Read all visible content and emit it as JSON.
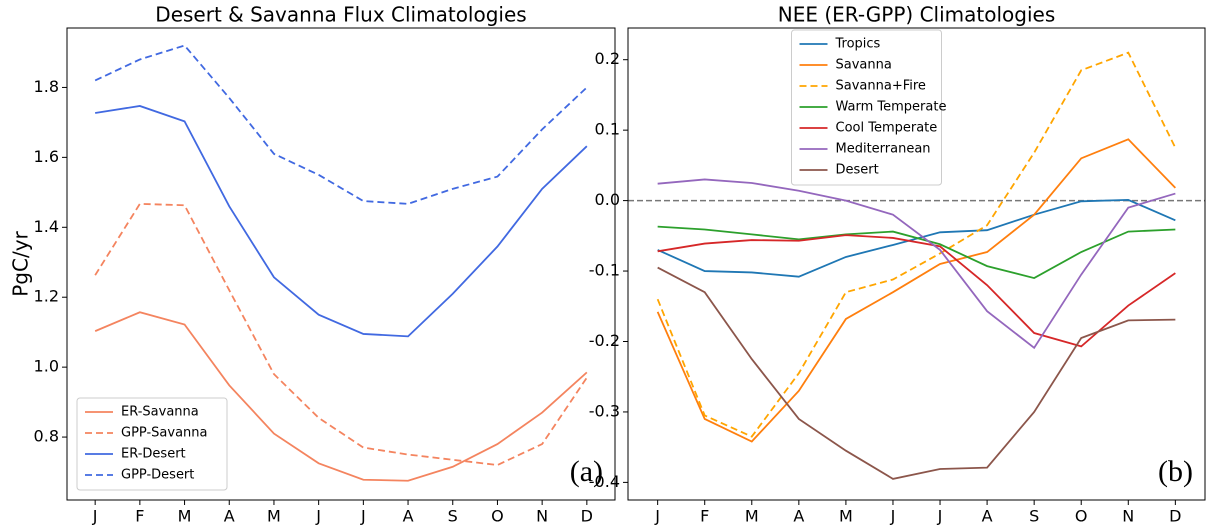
{
  "chart_data": [
    {
      "type": "line",
      "title": "Desert & Savanna Flux Climatologies",
      "y_label": "PgC/yr",
      "annotation": "(a)",
      "categories": [
        "J",
        "F",
        "M",
        "A",
        "M",
        "J",
        "J",
        "A",
        "S",
        "O",
        "N",
        "D"
      ],
      "ylim": [
        0.62,
        1.97
      ],
      "yticks": [
        0.8,
        {
          "value": 1,
          "label": "1.0"
        },
        1.2,
        1.4,
        1.6,
        1.8
      ],
      "legend": "lower left",
      "series": [
        {
          "name": "ER-Savanna",
          "color": "#f4845f",
          "linestyle": "solid",
          "values": [
            1.103,
            1.157,
            1.122,
            0.948,
            0.81,
            0.725,
            0.678,
            0.675,
            0.715,
            0.78,
            0.87,
            0.985
          ]
        },
        {
          "name": "GPP-Savanna",
          "color": "#f4845f",
          "linestyle": "dashed",
          "values": [
            1.263,
            1.467,
            1.463,
            1.22,
            0.98,
            0.855,
            0.77,
            0.75,
            0.735,
            0.72,
            0.78,
            0.97
          ]
        },
        {
          "name": "ER-Desert",
          "color": "#4169e1",
          "linestyle": "solid",
          "values": [
            1.727,
            1.747,
            1.703,
            1.46,
            1.257,
            1.15,
            1.095,
            1.088,
            1.21,
            1.345,
            1.51,
            1.632
          ]
        },
        {
          "name": "GPP-Desert",
          "color": "#4169e1",
          "linestyle": "dashed",
          "values": [
            1.82,
            1.88,
            1.92,
            1.77,
            1.61,
            1.55,
            1.475,
            1.467,
            1.51,
            1.545,
            1.68,
            1.8
          ]
        }
      ]
    },
    {
      "type": "line",
      "title": "NEE (ER-GPP) Climatologies",
      "annotation": "(b)",
      "categories": [
        "J",
        "F",
        "M",
        "A",
        "M",
        "J",
        "J",
        "A",
        "S",
        "O",
        "N",
        "D"
      ],
      "ylim": [
        -0.425,
        0.245
      ],
      "yticks": [
        -0.4,
        -0.3,
        -0.2,
        -0.1,
        {
          "value": 0,
          "label": "0.0"
        },
        0.1,
        0.2
      ],
      "hline": 0,
      "legend": "upper center",
      "series": [
        {
          "name": "Tropics",
          "color": "#1f77b4",
          "linestyle": "solid",
          "values": [
            -0.07,
            -0.1,
            -0.102,
            -0.108,
            -0.08,
            -0.063,
            -0.045,
            -0.042,
            -0.02,
            -0.001,
            0.001,
            -0.028
          ]
        },
        {
          "name": "Savanna",
          "color": "#ff7f0e",
          "linestyle": "solid",
          "values": [
            -0.158,
            -0.31,
            -0.342,
            -0.27,
            -0.168,
            -0.13,
            -0.09,
            -0.073,
            -0.02,
            0.06,
            0.087,
            0.018
          ]
        },
        {
          "name": "Savanna+Fire",
          "color": "#ffa500",
          "linestyle": "dashed",
          "values": [
            -0.14,
            -0.305,
            -0.335,
            -0.245,
            -0.13,
            -0.112,
            -0.075,
            -0.035,
            0.068,
            0.185,
            0.21,
            0.075
          ]
        },
        {
          "name": "Warm Temperate",
          "color": "#2ca02c",
          "linestyle": "solid",
          "values": [
            -0.037,
            -0.041,
            -0.048,
            -0.055,
            -0.048,
            -0.044,
            -0.062,
            -0.093,
            -0.11,
            -0.073,
            -0.044,
            -0.041
          ]
        },
        {
          "name": "Cool Temperate",
          "color": "#d62728",
          "linestyle": "solid",
          "values": [
            -0.072,
            -0.061,
            -0.056,
            -0.057,
            -0.049,
            -0.053,
            -0.065,
            -0.12,
            -0.188,
            -0.207,
            -0.149,
            -0.103
          ]
        },
        {
          "name": "Mediterranean",
          "color": "#9467bd",
          "linestyle": "solid",
          "values": [
            0.024,
            0.03,
            0.025,
            0.014,
            0.0,
            -0.02,
            -0.07,
            -0.157,
            -0.209,
            -0.105,
            -0.01,
            0.01
          ]
        },
        {
          "name": "Desert",
          "color": "#8c564b",
          "linestyle": "solid",
          "values": [
            -0.095,
            -0.13,
            -0.225,
            -0.31,
            -0.355,
            -0.395,
            -0.381,
            -0.379,
            -0.3,
            -0.195,
            -0.17,
            -0.169
          ]
        }
      ]
    }
  ]
}
